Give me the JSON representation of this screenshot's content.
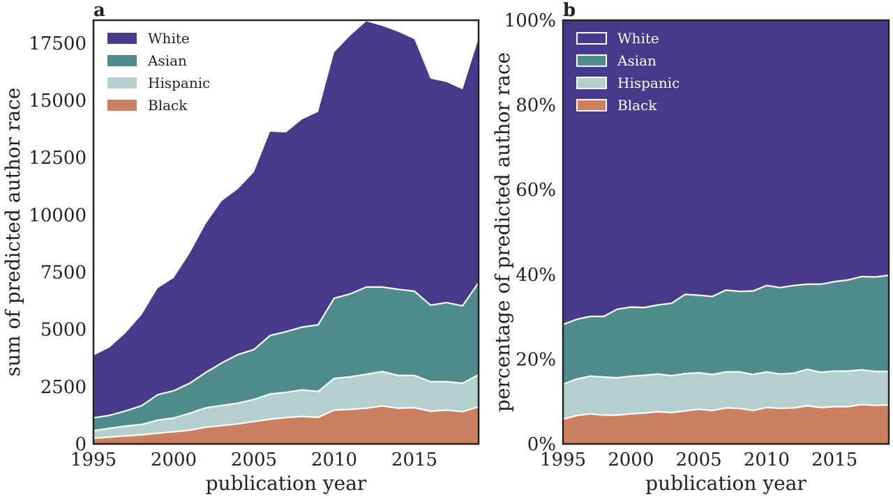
{
  "colors": {
    "White": "#473a8a",
    "Asian": "#4f8b8b",
    "Hispanic": "#b5cfcf",
    "Black": "#cd7f62"
  },
  "chart_data": [
    {
      "type": "area",
      "panel_label": "a",
      "xlabel": "publication year",
      "ylabel": "sum of predicted author race",
      "xlim": [
        1995,
        2019
      ],
      "ylim": [
        0,
        18500
      ],
      "x_ticks": [
        "1995",
        "2000",
        "2005",
        "2010",
        "2015"
      ],
      "y_ticks": [
        "0",
        "2500",
        "5000",
        "7500",
        "10000",
        "12500",
        "15000",
        "17500"
      ],
      "legend": [
        "White",
        "Asian",
        "Hispanic",
        "Black"
      ],
      "legend_position": "top-left",
      "stacking": "absolute",
      "x": [
        1995,
        1996,
        1997,
        1998,
        1999,
        2000,
        2001,
        2002,
        2003,
        2004,
        2005,
        2006,
        2007,
        2008,
        2009,
        2010,
        2011,
        2012,
        2013,
        2014,
        2015,
        2016,
        2017,
        2018,
        2019
      ],
      "series": [
        {
          "name": "Black",
          "values": [
            250,
            300,
            350,
            400,
            470,
            530,
            600,
            730,
            800,
            880,
            980,
            1080,
            1150,
            1200,
            1160,
            1480,
            1510,
            1560,
            1660,
            1560,
            1580,
            1430,
            1480,
            1410,
            1620
          ]
        },
        {
          "name": "Hispanic",
          "values": [
            330,
            380,
            430,
            450,
            570,
            600,
            740,
            850,
            880,
            900,
            960,
            1100,
            1100,
            1160,
            1130,
            1380,
            1420,
            1480,
            1500,
            1430,
            1410,
            1290,
            1240,
            1240,
            1400
          ]
        },
        {
          "name": "Asian",
          "values": [
            560,
            570,
            660,
            820,
            1110,
            1190,
            1310,
            1540,
            1860,
            2120,
            2180,
            2550,
            2650,
            2740,
            2910,
            3500,
            3620,
            3810,
            3690,
            3760,
            3680,
            3340,
            3450,
            3380,
            4020
          ]
        },
        {
          "name": "White",
          "values": [
            2720,
            2960,
            3400,
            3970,
            4650,
            4930,
            5680,
            6500,
            7070,
            7230,
            7750,
            8900,
            8700,
            9070,
            9300,
            10740,
            11280,
            11600,
            11400,
            11240,
            11000,
            9890,
            9630,
            9450,
            10660
          ]
        }
      ]
    },
    {
      "type": "area",
      "panel_label": "b",
      "xlabel": "publication year",
      "ylabel": "percentage of predicted author race",
      "xlim": [
        1995,
        2019
      ],
      "ylim": [
        0,
        100
      ],
      "x_ticks": [
        "1995",
        "2000",
        "2005",
        "2010",
        "2015"
      ],
      "y_ticks": [
        "0%",
        "20%",
        "40%",
        "60%",
        "80%",
        "100%"
      ],
      "legend": [
        "White",
        "Asian",
        "Hispanic",
        "Black"
      ],
      "legend_position": "top-left",
      "stacking": "percent",
      "x": [
        1995,
        1996,
        1997,
        1998,
        1999,
        2000,
        2001,
        2002,
        2003,
        2004,
        2005,
        2006,
        2007,
        2008,
        2009,
        2010,
        2011,
        2012,
        2013,
        2014,
        2015,
        2016,
        2017,
        2018,
        2019
      ],
      "series": [
        {
          "name": "Black",
          "values": [
            5.8,
            6.7,
            7.1,
            6.8,
            6.8,
            7.1,
            7.3,
            7.6,
            7.4,
            7.8,
            8.2,
            7.9,
            8.5,
            8.4,
            7.9,
            8.6,
            8.4,
            8.5,
            9.0,
            8.6,
            8.8,
            8.8,
            9.3,
            9.1,
            9.2
          ]
        },
        {
          "name": "Hispanic",
          "values": [
            8.3,
            8.6,
            8.9,
            9.0,
            8.8,
            8.9,
            8.9,
            8.9,
            8.7,
            8.8,
            8.6,
            8.5,
            8.5,
            8.6,
            8.5,
            8.4,
            8.1,
            8.2,
            8.6,
            8.3,
            8.4,
            8.4,
            8.2,
            8.0,
            7.9
          ]
        },
        {
          "name": "Asian",
          "values": [
            14.1,
            14.1,
            14.1,
            14.3,
            16.2,
            16.3,
            16.0,
            16.3,
            17.1,
            18.7,
            18.3,
            18.4,
            19.3,
            19.0,
            19.7,
            20.4,
            20.4,
            20.7,
            20.1,
            20.8,
            21.1,
            21.5,
            22.0,
            22.3,
            22.7
          ]
        },
        {
          "name": "White",
          "values": [
            71.8,
            70.6,
            69.9,
            69.9,
            68.2,
            67.7,
            67.8,
            67.2,
            66.8,
            64.7,
            64.9,
            65.2,
            63.7,
            64.0,
            63.9,
            62.6,
            63.1,
            62.6,
            62.3,
            62.3,
            61.7,
            61.3,
            60.5,
            60.6,
            60.2
          ]
        }
      ]
    }
  ]
}
